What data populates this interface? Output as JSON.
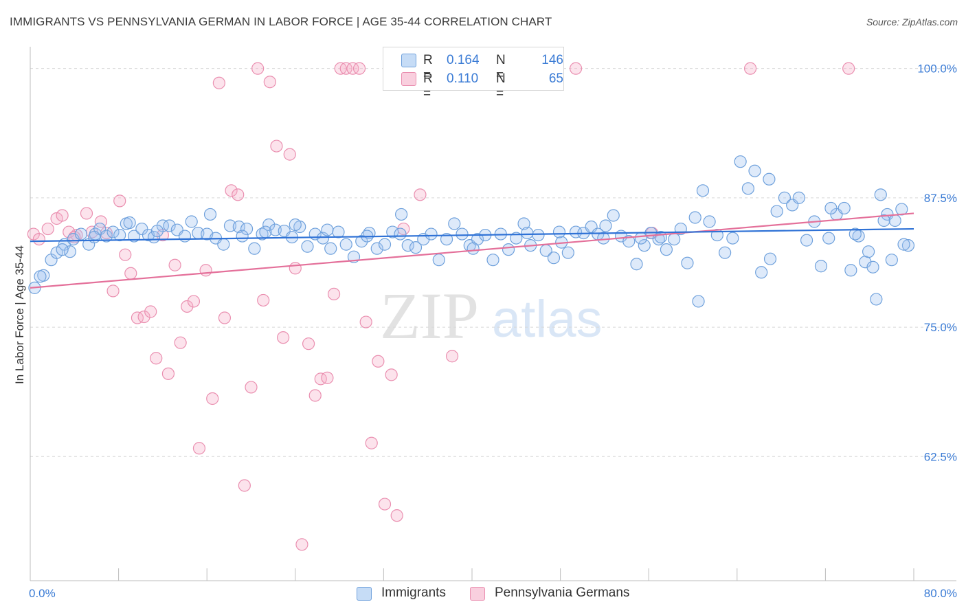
{
  "title": "IMMIGRANTS VS PENNSYLVANIA GERMAN IN LABOR FORCE | AGE 35-44 CORRELATION CHART",
  "source": "Source: ZipAtlas.com",
  "watermark": {
    "zip": "ZIP",
    "atlas": "atlas"
  },
  "colors": {
    "blue": "#6fa1dc",
    "blue_fill": "rgba(160,196,240,0.35)",
    "blue_line": "#2f72d6",
    "pink": "#ea8fb0",
    "pink_fill": "rgba(245,175,200,0.35)",
    "pink_line": "#e4709a",
    "tick_text": "#3a7bd5",
    "grid": "#d8d8d8"
  },
  "legend": {
    "rows": [
      {
        "r_label": "R =",
        "r_value": "0.164",
        "n_label": "N =",
        "n_value": "146"
      },
      {
        "r_label": "R =",
        "r_value": "0.110",
        "n_label": "N =",
        "n_value": "65"
      }
    ]
  },
  "bottom_legend": {
    "series1": "Immigrants",
    "series2": "Pennsylvania Germans"
  },
  "chart_data": {
    "type": "scatter",
    "title": "IMMIGRANTS VS PENNSYLVANIA GERMAN IN LABOR FORCE | AGE 35-44 CORRELATION CHART",
    "xlabel": "",
    "ylabel": "In Labor Force | Age 35-44",
    "xlim": [
      0,
      80
    ],
    "ylim": [
      50.5,
      102.5
    ],
    "x_tick_labels": [
      "0.0%",
      "80.0%"
    ],
    "y_ticks": [
      62.5,
      75.0,
      87.5,
      100.0
    ],
    "y_tick_labels": [
      "62.5%",
      "75.0%",
      "87.5%",
      "100.0%"
    ],
    "series": [
      {
        "name": "Immigrants",
        "r": 0.164,
        "n": 146,
        "trend": {
          "x": [
            0,
            80
          ],
          "y": [
            83.3,
            84.5
          ]
        },
        "points": [
          [
            0.4,
            78.8
          ],
          [
            1.2,
            80.0
          ],
          [
            1.9,
            81.5
          ],
          [
            2.4,
            82.2
          ],
          [
            3.1,
            83.0
          ],
          [
            3.6,
            82.3
          ],
          [
            3.9,
            83.5
          ],
          [
            4.6,
            84.0
          ],
          [
            5.3,
            83.0
          ],
          [
            5.9,
            84.0
          ],
          [
            6.3,
            84.5
          ],
          [
            6.9,
            83.8
          ],
          [
            7.5,
            84.2
          ],
          [
            8.1,
            83.9
          ],
          [
            8.7,
            85.0
          ],
          [
            9.4,
            83.8
          ],
          [
            10.1,
            84.5
          ],
          [
            10.7,
            83.9
          ],
          [
            11.2,
            83.7
          ],
          [
            12.0,
            84.8
          ],
          [
            12.6,
            84.8
          ],
          [
            13.3,
            84.4
          ],
          [
            14.0,
            83.8
          ],
          [
            14.6,
            85.2
          ],
          [
            15.2,
            84.1
          ],
          [
            16.0,
            84.0
          ],
          [
            16.8,
            83.6
          ],
          [
            17.5,
            83.0
          ],
          [
            18.1,
            84.8
          ],
          [
            18.9,
            84.7
          ],
          [
            19.6,
            84.5
          ],
          [
            20.3,
            82.6
          ],
          [
            21.0,
            84.0
          ],
          [
            21.6,
            84.9
          ],
          [
            22.2,
            84.4
          ],
          [
            23.0,
            84.3
          ],
          [
            23.7,
            83.7
          ],
          [
            24.4,
            84.7
          ],
          [
            25.1,
            82.8
          ],
          [
            25.8,
            84.0
          ],
          [
            26.5,
            83.6
          ],
          [
            27.2,
            82.6
          ],
          [
            27.9,
            84.2
          ],
          [
            28.6,
            83.0
          ],
          [
            29.3,
            81.8
          ],
          [
            30.0,
            83.3
          ],
          [
            30.7,
            84.1
          ],
          [
            31.4,
            82.6
          ],
          [
            32.1,
            83.0
          ],
          [
            32.8,
            84.2
          ],
          [
            33.5,
            84.0
          ],
          [
            34.2,
            82.9
          ],
          [
            34.9,
            82.7
          ],
          [
            35.6,
            83.5
          ],
          [
            36.3,
            84.0
          ],
          [
            37.0,
            81.5
          ],
          [
            37.7,
            83.5
          ],
          [
            38.4,
            85.0
          ],
          [
            39.1,
            84.0
          ],
          [
            39.8,
            82.9
          ],
          [
            40.5,
            83.5
          ],
          [
            41.2,
            83.9
          ],
          [
            41.9,
            81.5
          ],
          [
            42.6,
            84.0
          ],
          [
            43.3,
            82.5
          ],
          [
            44.0,
            83.6
          ],
          [
            44.7,
            85.0
          ],
          [
            45.3,
            82.9
          ],
          [
            46.0,
            83.9
          ],
          [
            46.7,
            82.4
          ],
          [
            47.4,
            81.7
          ],
          [
            48.1,
            83.2
          ],
          [
            48.7,
            82.2
          ],
          [
            49.4,
            84.2
          ],
          [
            50.1,
            84.1
          ],
          [
            50.8,
            84.7
          ],
          [
            51.4,
            84.0
          ],
          [
            52.1,
            84.8
          ],
          [
            52.8,
            85.8
          ],
          [
            53.5,
            83.8
          ],
          [
            54.2,
            83.3
          ],
          [
            54.9,
            81.1
          ],
          [
            55.6,
            82.9
          ],
          [
            56.2,
            84.1
          ],
          [
            56.9,
            83.5
          ],
          [
            57.6,
            82.5
          ],
          [
            58.3,
            83.5
          ],
          [
            58.9,
            84.5
          ],
          [
            59.5,
            81.2
          ],
          [
            60.2,
            85.6
          ],
          [
            60.9,
            88.2
          ],
          [
            61.5,
            85.2
          ],
          [
            62.2,
            83.9
          ],
          [
            62.9,
            82.2
          ],
          [
            63.6,
            83.6
          ],
          [
            64.3,
            91.0
          ],
          [
            65.0,
            88.4
          ],
          [
            65.6,
            90.1
          ],
          [
            66.2,
            80.3
          ],
          [
            66.9,
            89.3
          ],
          [
            67.6,
            86.2
          ],
          [
            68.3,
            87.5
          ],
          [
            69.0,
            86.8
          ],
          [
            69.6,
            87.5
          ],
          [
            70.3,
            83.4
          ],
          [
            71.0,
            85.2
          ],
          [
            71.6,
            80.9
          ],
          [
            72.3,
            83.6
          ],
          [
            73.0,
            85.9
          ],
          [
            73.7,
            86.5
          ],
          [
            74.3,
            80.5
          ],
          [
            75.0,
            83.8
          ],
          [
            75.6,
            81.3
          ],
          [
            76.3,
            80.8
          ],
          [
            77.0,
            87.8
          ],
          [
            77.6,
            85.9
          ],
          [
            78.3,
            85.3
          ],
          [
            78.9,
            86.4
          ],
          [
            79.5,
            82.9
          ],
          [
            0.9,
            79.9
          ],
          [
            5.8,
            83.7
          ],
          [
            9.0,
            85.1
          ],
          [
            16.3,
            85.9
          ],
          [
            19.2,
            83.8
          ],
          [
            21.3,
            84.2
          ],
          [
            24.0,
            84.9
          ],
          [
            30.5,
            83.8
          ],
          [
            33.6,
            85.9
          ],
          [
            40.1,
            82.6
          ],
          [
            45.0,
            84.1
          ],
          [
            47.9,
            84.2
          ],
          [
            51.9,
            83.6
          ],
          [
            55.3,
            83.6
          ],
          [
            57.1,
            83.7
          ],
          [
            60.5,
            77.5
          ],
          [
            67.0,
            81.6
          ],
          [
            72.5,
            86.5
          ],
          [
            74.7,
            84.0
          ],
          [
            75.9,
            82.3
          ],
          [
            76.6,
            77.7
          ],
          [
            77.3,
            85.3
          ],
          [
            78.0,
            81.5
          ],
          [
            79.1,
            83.0
          ],
          [
            2.9,
            82.5
          ],
          [
            11.5,
            84.3
          ],
          [
            26.9,
            84.4
          ]
        ]
      },
      {
        "name": "Pennsylvania Germans",
        "r": 0.11,
        "n": 65,
        "trend": {
          "x": [
            0,
            80
          ],
          "y": [
            78.8,
            86.0
          ]
        },
        "points": [
          [
            0.3,
            84.0
          ],
          [
            0.8,
            83.5
          ],
          [
            1.6,
            84.5
          ],
          [
            2.4,
            85.5
          ],
          [
            2.9,
            85.8
          ],
          [
            3.5,
            84.2
          ],
          [
            4.2,
            83.9
          ],
          [
            5.1,
            86.0
          ],
          [
            5.6,
            84.2
          ],
          [
            6.4,
            85.2
          ],
          [
            6.9,
            84.1
          ],
          [
            7.5,
            78.5
          ],
          [
            8.1,
            87.2
          ],
          [
            8.6,
            82.0
          ],
          [
            9.1,
            80.2
          ],
          [
            9.7,
            75.9
          ],
          [
            10.3,
            76.0
          ],
          [
            10.9,
            76.5
          ],
          [
            11.4,
            72.0
          ],
          [
            12.0,
            83.9
          ],
          [
            12.5,
            70.5
          ],
          [
            13.1,
            81.0
          ],
          [
            13.6,
            73.5
          ],
          [
            14.2,
            77.0
          ],
          [
            14.8,
            77.5
          ],
          [
            15.3,
            63.3
          ],
          [
            15.9,
            80.5
          ],
          [
            16.5,
            68.1
          ],
          [
            17.1,
            98.6
          ],
          [
            17.6,
            75.9
          ],
          [
            18.2,
            88.2
          ],
          [
            18.8,
            87.8
          ],
          [
            19.4,
            59.7
          ],
          [
            20.0,
            69.2
          ],
          [
            20.6,
            100.0
          ],
          [
            21.1,
            77.6
          ],
          [
            21.7,
            98.7
          ],
          [
            22.3,
            92.5
          ],
          [
            22.9,
            74.0
          ],
          [
            23.5,
            91.7
          ],
          [
            24.0,
            80.7
          ],
          [
            24.6,
            54.0
          ],
          [
            25.2,
            73.4
          ],
          [
            25.8,
            68.4
          ],
          [
            26.3,
            70.0
          ],
          [
            26.9,
            70.1
          ],
          [
            27.5,
            78.2
          ],
          [
            28.1,
            100.0
          ],
          [
            28.6,
            100.0
          ],
          [
            29.2,
            100.0
          ],
          [
            29.8,
            100.0
          ],
          [
            30.4,
            75.5
          ],
          [
            30.9,
            63.8
          ],
          [
            31.5,
            71.7
          ],
          [
            32.1,
            57.9
          ],
          [
            32.7,
            70.4
          ],
          [
            33.2,
            56.8
          ],
          [
            33.8,
            84.5
          ],
          [
            35.3,
            87.8
          ],
          [
            38.2,
            72.2
          ],
          [
            49.4,
            100.0
          ],
          [
            56.3,
            84.1
          ],
          [
            65.2,
            100.0
          ],
          [
            74.1,
            100.0
          ],
          [
            4.0,
            83.7
          ]
        ]
      }
    ]
  }
}
